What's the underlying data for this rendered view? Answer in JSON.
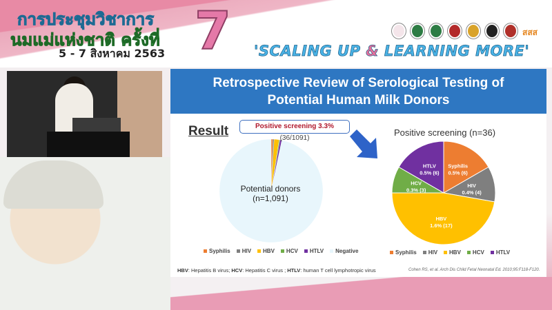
{
  "banner": {
    "thai_line1": "การประชุมวิชาการ",
    "thai_line2": "นมแม่แห่งชาติ ครั้งที่",
    "number": "7",
    "date": "5 - 7 สิงหาคม 2563",
    "slogan_part1": "'SCALING UP ",
    "slogan_amp": "&",
    "slogan_part2": " LEARNING MORE'",
    "sponsor_logo_text": "สสส"
  },
  "slide": {
    "title_line1": "Retrospective Review of Serological Testing of",
    "title_line2": "Potential Human Milk Donors",
    "result_heading": "Result",
    "callout_bold": "Positive screening 3.3%",
    "callout_rest": " (36/1091)",
    "footnote_parts": [
      "HBV",
      ": Hepatitis B virus; ",
      "HCV",
      ": Hepatitis C virus ; ",
      "HTLV",
      ": human T cell lymphotropic virus"
    ],
    "citation": "Cohen RS, et al. Arch Dis Child Fetal Neonatal Ed. 2010;95:F118-F120."
  },
  "chart_data": [
    {
      "type": "pie",
      "center_label_line1": "Potential donors",
      "center_label_line2": "(n=1,091)",
      "categories": [
        "Syphilis",
        "HIV",
        "HBV",
        "HCV",
        "HTLV",
        "Negative"
      ],
      "values": [
        6,
        4,
        17,
        3,
        6,
        1055
      ],
      "colors": [
        "#ed7d31",
        "#7f7f7f",
        "#ffc000",
        "#70ad47",
        "#7030a0",
        "#e8f6fc"
      ],
      "legend": "bottom"
    },
    {
      "type": "pie",
      "title": "Positive screening (n=36)",
      "categories": [
        "Syphilis",
        "HIV",
        "HBV",
        "HCV",
        "HTLV"
      ],
      "values": [
        6,
        4,
        17,
        3,
        6
      ],
      "data_labels": [
        [
          "Syphilis",
          "0.5% (6)"
        ],
        [
          "HIV",
          "0.4% (4)"
        ],
        [
          "HBV",
          "1.6% (17)"
        ],
        [
          "HCV",
          "0.3% (3)"
        ],
        [
          "HTLV",
          "0.5% (6)"
        ]
      ],
      "colors": [
        "#ed7d31",
        "#7f7f7f",
        "#ffc000",
        "#70ad47",
        "#7030a0"
      ],
      "legend": "bottom"
    }
  ]
}
